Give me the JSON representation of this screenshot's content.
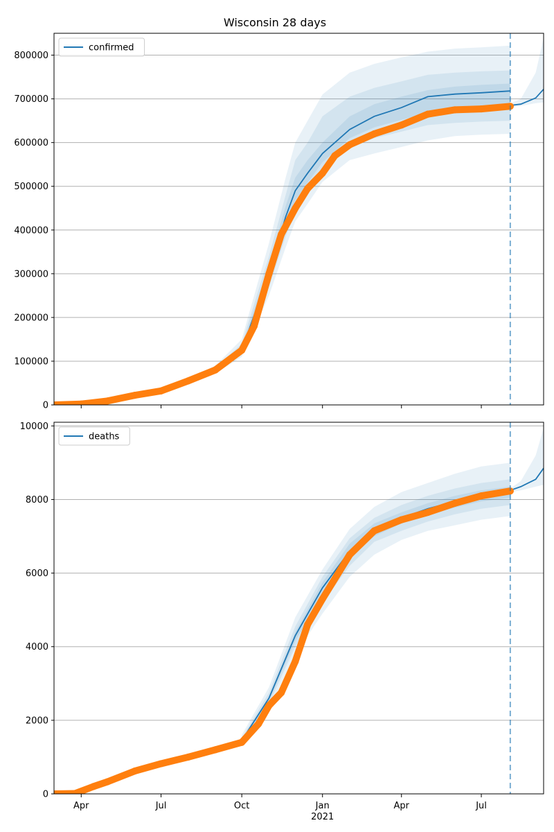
{
  "chart_data": [
    {
      "type": "line",
      "title": "Wisconsin 28 days",
      "legend": "top-left",
      "grid": "horizontal",
      "ylim": [
        0,
        850000
      ],
      "yticks": [
        0,
        100000,
        200000,
        300000,
        400000,
        500000,
        600000,
        700000,
        800000
      ],
      "series": [
        {
          "name": "confirmed",
          "style": "line",
          "color": "#1f77b4",
          "x": [
            "2020-08-01",
            "2020-09-01",
            "2020-10-01",
            "2020-11-01",
            "2020-11-20",
            "2020-12-01",
            "2020-12-15",
            "2021-01-01",
            "2021-02-01",
            "2021-03-01",
            "2021-04-01",
            "2021-05-01",
            "2021-06-01",
            "2021-07-01",
            "2021-08-03"
          ],
          "values": [
            55000,
            80000,
            125000,
            300000,
            430000,
            490000,
            530000,
            575000,
            630000,
            660000,
            680000,
            705000,
            711000,
            714000,
            718000
          ]
        },
        {
          "name": "",
          "style": "forecast",
          "color": "#1f77b4",
          "x": [
            "2021-08-03",
            "2021-08-15",
            "2021-09-01",
            "2021-09-10"
          ],
          "values": [
            685000,
            688000,
            702000,
            722000
          ]
        },
        {
          "name": "",
          "style": "points",
          "color": "#ff7f0e",
          "x": [
            "2020-03-01",
            "2020-04-01",
            "2020-05-01",
            "2020-06-01",
            "2020-07-01",
            "2020-08-01",
            "2020-09-01",
            "2020-10-01",
            "2020-10-15",
            "2020-11-01",
            "2020-11-15",
            "2020-12-01",
            "2020-12-15",
            "2021-01-01",
            "2021-01-15",
            "2021-02-01",
            "2021-03-01",
            "2021-04-01",
            "2021-05-01",
            "2021-06-01",
            "2021-07-01",
            "2021-08-03"
          ],
          "values": [
            0,
            2000,
            9000,
            22000,
            32000,
            55000,
            80000,
            125000,
            180000,
            300000,
            390000,
            450000,
            495000,
            530000,
            570000,
            595000,
            620000,
            640000,
            665000,
            675000,
            677000,
            683000
          ]
        }
      ],
      "vline_x": "2021-08-03",
      "x_range": [
        "2020-03-01",
        "2021-09-10"
      ],
      "x_ticks": [
        "Apr",
        "Jul",
        "Oct",
        "Jan",
        "Apr",
        "Jul"
      ],
      "x_ticks_dates": [
        "2020-04-01",
        "2020-07-01",
        "2020-10-01",
        "2021-01-01",
        "2021-04-01",
        "2021-07-01"
      ],
      "x_year_label": "2021",
      "bands": [
        {
          "x": [
            "2020-08-01",
            "2020-09-01",
            "2020-10-01",
            "2020-11-01",
            "2020-11-20",
            "2020-12-01",
            "2020-12-15",
            "2021-01-01",
            "2021-02-01",
            "2021-03-01",
            "2021-04-01",
            "2021-05-01",
            "2021-06-01",
            "2021-07-01",
            "2021-08-03"
          ],
          "lo": [
            50000,
            72000,
            110000,
            250000,
            360000,
            420000,
            460000,
            510000,
            560000,
            575000,
            590000,
            605000,
            615000,
            618000,
            620000
          ],
          "hi": [
            60000,
            90000,
            150000,
            370000,
            520000,
            600000,
            650000,
            710000,
            760000,
            780000,
            795000,
            808000,
            815000,
            818000,
            822000
          ]
        },
        {
          "x": [
            "2020-08-01",
            "2020-09-01",
            "2020-10-01",
            "2020-11-01",
            "2020-11-20",
            "2020-12-01",
            "2020-12-15",
            "2021-01-01",
            "2021-02-01",
            "2021-03-01",
            "2021-04-01",
            "2021-05-01",
            "2021-06-01",
            "2021-07-01",
            "2021-08-03"
          ],
          "lo": [
            52000,
            75000,
            115000,
            270000,
            385000,
            445000,
            485000,
            535000,
            590000,
            610000,
            625000,
            640000,
            645000,
            648000,
            650000
          ],
          "hi": [
            58000,
            86000,
            140000,
            340000,
            480000,
            560000,
            600000,
            660000,
            705000,
            725000,
            740000,
            755000,
            760000,
            763000,
            765000
          ]
        },
        {
          "x": [
            "2020-08-01",
            "2020-09-01",
            "2020-10-01",
            "2020-11-01",
            "2020-11-20",
            "2020-12-01",
            "2020-12-15",
            "2021-01-01",
            "2021-02-01",
            "2021-03-01",
            "2021-04-01",
            "2021-05-01",
            "2021-06-01",
            "2021-07-01",
            "2021-08-03"
          ],
          "lo": [
            53500,
            78000,
            120000,
            285000,
            410000,
            468000,
            508000,
            555000,
            610000,
            635000,
            652000,
            668000,
            675000,
            678000,
            680000
          ],
          "hi": [
            56500,
            83000,
            132000,
            320000,
            455000,
            520000,
            560000,
            600000,
            660000,
            688000,
            705000,
            720000,
            728000,
            732000,
            735000
          ]
        },
        {
          "x": [
            "2021-08-03",
            "2021-08-15",
            "2021-09-01",
            "2021-09-10"
          ],
          "lo": [
            680000,
            684000,
            690000,
            692000
          ],
          "hi": [
            690000,
            700000,
            760000,
            840000
          ]
        }
      ]
    },
    {
      "type": "line",
      "title": "",
      "legend": "top-left",
      "grid": "horizontal",
      "ylim": [
        0,
        10100
      ],
      "yticks": [
        0,
        2000,
        4000,
        6000,
        8000,
        10000
      ],
      "series": [
        {
          "name": "deaths",
          "style": "line",
          "color": "#1f77b4",
          "x": [
            "2020-10-01",
            "2020-11-01",
            "2020-12-01",
            "2021-01-01",
            "2021-02-01",
            "2021-03-01",
            "2021-04-01",
            "2021-05-01",
            "2021-06-01",
            "2021-07-01",
            "2021-08-03"
          ],
          "values": [
            1450,
            2600,
            4300,
            5600,
            6600,
            7200,
            7500,
            7750,
            7950,
            8100,
            8250
          ]
        },
        {
          "name": "",
          "style": "forecast",
          "color": "#1f77b4",
          "x": [
            "2021-08-03",
            "2021-08-15",
            "2021-09-01",
            "2021-09-10"
          ],
          "values": [
            8250,
            8350,
            8550,
            8850
          ]
        },
        {
          "name": "",
          "style": "points",
          "color": "#ff7f0e",
          "x": [
            "2020-03-01",
            "2020-03-25",
            "2020-04-15",
            "2020-05-01",
            "2020-06-01",
            "2020-07-01",
            "2020-08-01",
            "2020-09-01",
            "2020-10-01",
            "2020-10-20",
            "2020-11-01",
            "2020-11-15",
            "2020-12-01",
            "2020-12-15",
            "2021-01-01",
            "2021-02-01",
            "2021-03-01",
            "2021-04-01",
            "2021-05-01",
            "2021-06-01",
            "2021-07-01",
            "2021-08-03"
          ],
          "values": [
            0,
            10,
            200,
            330,
            620,
            820,
            1000,
            1200,
            1400,
            1900,
            2400,
            2750,
            3600,
            4600,
            5300,
            6500,
            7150,
            7450,
            7650,
            7900,
            8100,
            8230
          ]
        }
      ],
      "vline_x": "2021-08-03",
      "x_range": [
        "2020-03-01",
        "2021-09-10"
      ],
      "x_ticks": [
        "Apr",
        "Jul",
        "Oct",
        "Jan",
        "Apr",
        "Jul"
      ],
      "x_ticks_dates": [
        "2020-04-01",
        "2020-07-01",
        "2020-10-01",
        "2021-01-01",
        "2021-04-01",
        "2021-07-01"
      ],
      "x_year_label": "2021",
      "bands": [
        {
          "x": [
            "2020-10-01",
            "2020-11-01",
            "2020-12-01",
            "2021-01-01",
            "2021-02-01",
            "2021-03-01",
            "2021-04-01",
            "2021-05-01",
            "2021-06-01",
            "2021-07-01",
            "2021-08-03"
          ],
          "lo": [
            1350,
            2300,
            3800,
            4900,
            5900,
            6500,
            6900,
            7150,
            7300,
            7450,
            7550
          ],
          "hi": [
            1600,
            2900,
            4800,
            6100,
            7200,
            7800,
            8200,
            8450,
            8700,
            8900,
            9000
          ]
        },
        {
          "x": [
            "2020-10-01",
            "2020-11-01",
            "2020-12-01",
            "2021-01-01",
            "2021-02-01",
            "2021-03-01",
            "2021-04-01",
            "2021-05-01",
            "2021-06-01",
            "2021-07-01",
            "2021-08-03"
          ],
          "lo": [
            1400,
            2450,
            4000,
            5200,
            6200,
            6850,
            7150,
            7400,
            7600,
            7750,
            7850
          ],
          "hi": [
            1520,
            2750,
            4550,
            5900,
            6950,
            7500,
            7850,
            8100,
            8300,
            8450,
            8550
          ]
        },
        {
          "x": [
            "2020-10-01",
            "2020-11-01",
            "2020-12-01",
            "2021-01-01",
            "2021-02-01",
            "2021-03-01",
            "2021-04-01",
            "2021-05-01",
            "2021-06-01",
            "2021-07-01",
            "2021-08-03"
          ],
          "lo": [
            1420,
            2520,
            4150,
            5400,
            6400,
            7000,
            7350,
            7580,
            7780,
            7950,
            8050
          ],
          "hi": [
            1480,
            2650,
            4400,
            5750,
            6800,
            7350,
            7650,
            7900,
            8100,
            8250,
            8350
          ]
        },
        {
          "x": [
            "2021-08-03",
            "2021-08-15",
            "2021-09-01",
            "2021-09-10"
          ],
          "lo": [
            8200,
            8250,
            8350,
            8400
          ],
          "hi": [
            8300,
            8500,
            9200,
            9950
          ]
        }
      ]
    }
  ]
}
